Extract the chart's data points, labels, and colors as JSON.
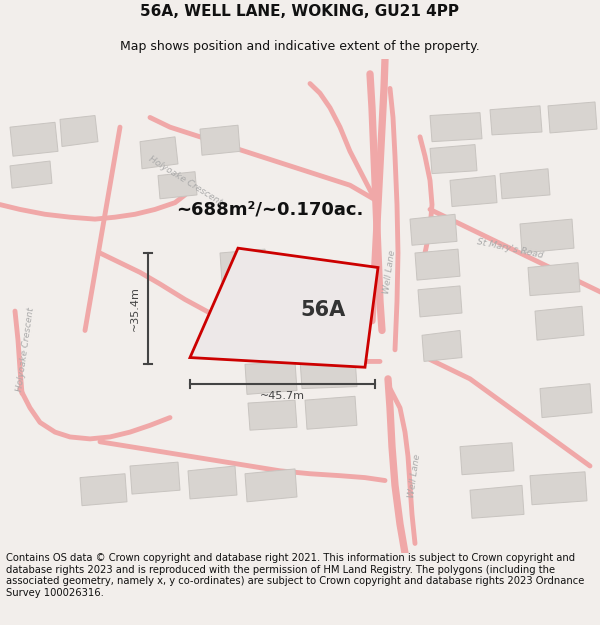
{
  "title": "56A, WELL LANE, WOKING, GU21 4PP",
  "subtitle": "Map shows position and indicative extent of the property.",
  "footer": "Contains OS data © Crown copyright and database right 2021. This information is subject to Crown copyright and database rights 2023 and is reproduced with the permission of HM Land Registry. The polygons (including the associated geometry, namely x, y co-ordinates) are subject to Crown copyright and database rights 2023 Ordnance Survey 100026316.",
  "area_label": "~688m²/~0.170ac.",
  "label_56a": "56A",
  "dim_width": "~45.7m",
  "dim_height": "~35.4m",
  "bg_color": "#f2eeeb",
  "map_bg": "#ffffff",
  "title_fontsize": 11,
  "subtitle_fontsize": 9,
  "footer_fontsize": 7.2,
  "road_color": "#f0a8a8",
  "building_fill": "#d8d4d0",
  "building_edge": "#c8c4c0",
  "plot_outline_color": "#cc0000",
  "plot_fill_color": "#ede8e8",
  "dim_color": "#444444",
  "label_color": "#333333",
  "road_label_color": "#aaaaaa",
  "area_label_color": "#111111",
  "road_lw": 2.2,
  "road_lw_main": 3.5
}
